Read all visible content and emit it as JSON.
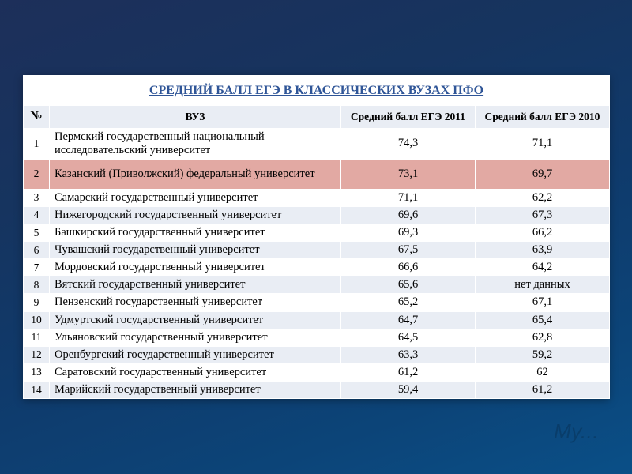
{
  "title": "СРЕДНИЙ БАЛЛ ЕГЭ В КЛАССИЧЕСКИХ ВУЗАХ ПФО",
  "columns": {
    "num": "№",
    "name": "ВУЗ",
    "y2011": "Средний балл ЕГЭ 2011",
    "y2010": "Средний балл ЕГЭ 2010"
  },
  "rows": [
    {
      "num": "1",
      "name": "Пермский государственный национальный исследовательский университет",
      "y2011": "74,3",
      "y2010": "71,1",
      "band": "a",
      "tall": true,
      "highlight": false
    },
    {
      "num": "2",
      "name": "Казанский (Приволжский) федеральный университет",
      "y2011": "73,1",
      "y2010": "69,7",
      "band": "b",
      "tall": true,
      "highlight": true
    },
    {
      "num": "3",
      "name": "Самарский государственный университет",
      "y2011": "71,1",
      "y2010": "62,2",
      "band": "a",
      "tall": false,
      "highlight": false
    },
    {
      "num": "4",
      "name": "Нижегородский государственный университет",
      "y2011": "69,6",
      "y2010": "67,3",
      "band": "b",
      "tall": false,
      "highlight": false
    },
    {
      "num": "5",
      "name": "Башкирский государственный университет",
      "y2011": "69,3",
      "y2010": "66,2",
      "band": "a",
      "tall": false,
      "highlight": false
    },
    {
      "num": "6",
      "name": "Чувашский государственный университет",
      "y2011": "67,5",
      "y2010": "63,9",
      "band": "b",
      "tall": false,
      "highlight": false
    },
    {
      "num": "7",
      "name": "Мордовский государственный университет",
      "y2011": "66,6",
      "y2010": "64,2",
      "band": "a",
      "tall": false,
      "highlight": false
    },
    {
      "num": "8",
      "name": "Вятский государственный университет",
      "y2011": "65,6",
      "y2010": "нет данных",
      "band": "b",
      "tall": false,
      "highlight": false
    },
    {
      "num": "9",
      "name": "Пензенский государственный университет",
      "y2011": "65,2",
      "y2010": "67,1",
      "band": "a",
      "tall": false,
      "highlight": false
    },
    {
      "num": "10",
      "name": "Удмуртский государственный университет",
      "y2011": "64,7",
      "y2010": "65,4",
      "band": "b",
      "tall": false,
      "highlight": false
    },
    {
      "num": "11",
      "name": "Ульяновский государственный университет",
      "y2011": "64,5",
      "y2010": "62,8",
      "band": "a",
      "tall": false,
      "highlight": false
    },
    {
      "num": "12",
      "name": "Оренбургский государственный университет",
      "y2011": "63,3",
      "y2010": "59,2",
      "band": "b",
      "tall": false,
      "highlight": false
    },
    {
      "num": "13",
      "name": "Саратовский государственный университет",
      "y2011": "61,2",
      "y2010": "62",
      "band": "a",
      "tall": false,
      "highlight": false
    },
    {
      "num": "14",
      "name": "Марийский государственный университет",
      "y2011": "59,4",
      "y2010": "61,2",
      "band": "b",
      "tall": false,
      "highlight": false
    }
  ],
  "watermark": "My...",
  "style": {
    "title_color": "#2f5597",
    "band_a": "#ffffff",
    "band_b": "#e9edf4",
    "highlight": "#e2a9a3"
  }
}
